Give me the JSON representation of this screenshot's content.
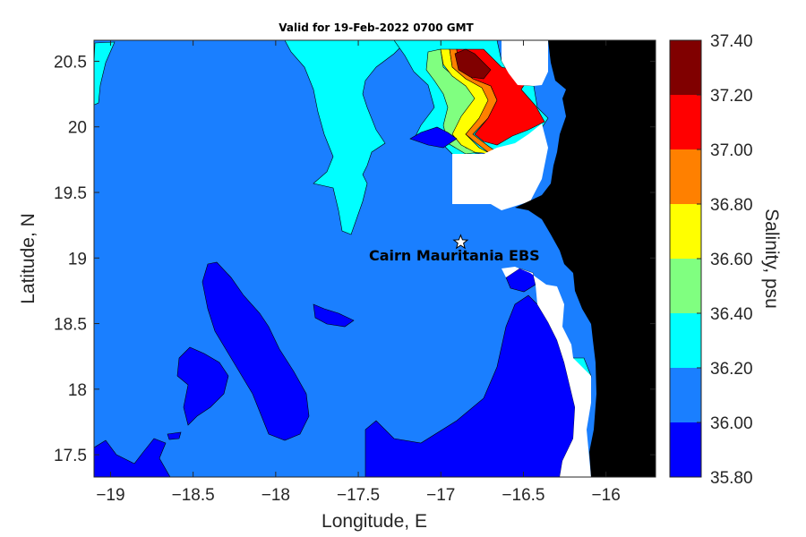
{
  "title": "Valid for 19-Feb-2022 0700 GMT",
  "xlabel": "Longitude, E",
  "ylabel": "Latitude, N",
  "colorbar_label": "Salinity, psu",
  "marker_label": "Cairn Mauritania EBS",
  "chart_data": {
    "type": "heatmap",
    "title": "Valid for 19-Feb-2022 0700 GMT",
    "xlabel": "Longitude, E",
    "ylabel": "Latitude, N",
    "xlim": [
      -19.1,
      -15.7
    ],
    "ylim": [
      17.33,
      20.66
    ],
    "x_ticks": [
      -19,
      -18.5,
      -18,
      -17.5,
      -17,
      -16.5,
      -16
    ],
    "x_tick_labels": [
      "−19",
      "−18.5",
      "−18",
      "−17.5",
      "−17",
      "−16.5",
      "−16"
    ],
    "y_ticks": [
      17.5,
      18,
      18.5,
      19,
      19.5,
      20,
      20.5
    ],
    "y_tick_labels": [
      "17.5",
      "18",
      "18.5",
      "19",
      "19.5",
      "20",
      "20.5"
    ],
    "colorbar": {
      "label": "Salinity, psu",
      "levels": [
        35.8,
        36.0,
        36.2,
        36.4,
        36.6,
        36.8,
        37.0,
        37.2,
        37.4
      ],
      "level_labels": [
        "35.80",
        "36.00",
        "36.20",
        "36.40",
        "36.60",
        "36.80",
        "37.00",
        "37.20",
        "37.40"
      ],
      "colors": [
        "#0000ff",
        "#1a7fff",
        "#00ffff",
        "#80ff80",
        "#ffff00",
        "#ff8000",
        "#ff0000",
        "#800000"
      ]
    },
    "land_color": "#000000",
    "nodata_color": "#ffffff",
    "marker": {
      "lon": -16.88,
      "lat": 19.12,
      "label": "Cairn Mauritania EBS",
      "symbol": "star"
    }
  }
}
